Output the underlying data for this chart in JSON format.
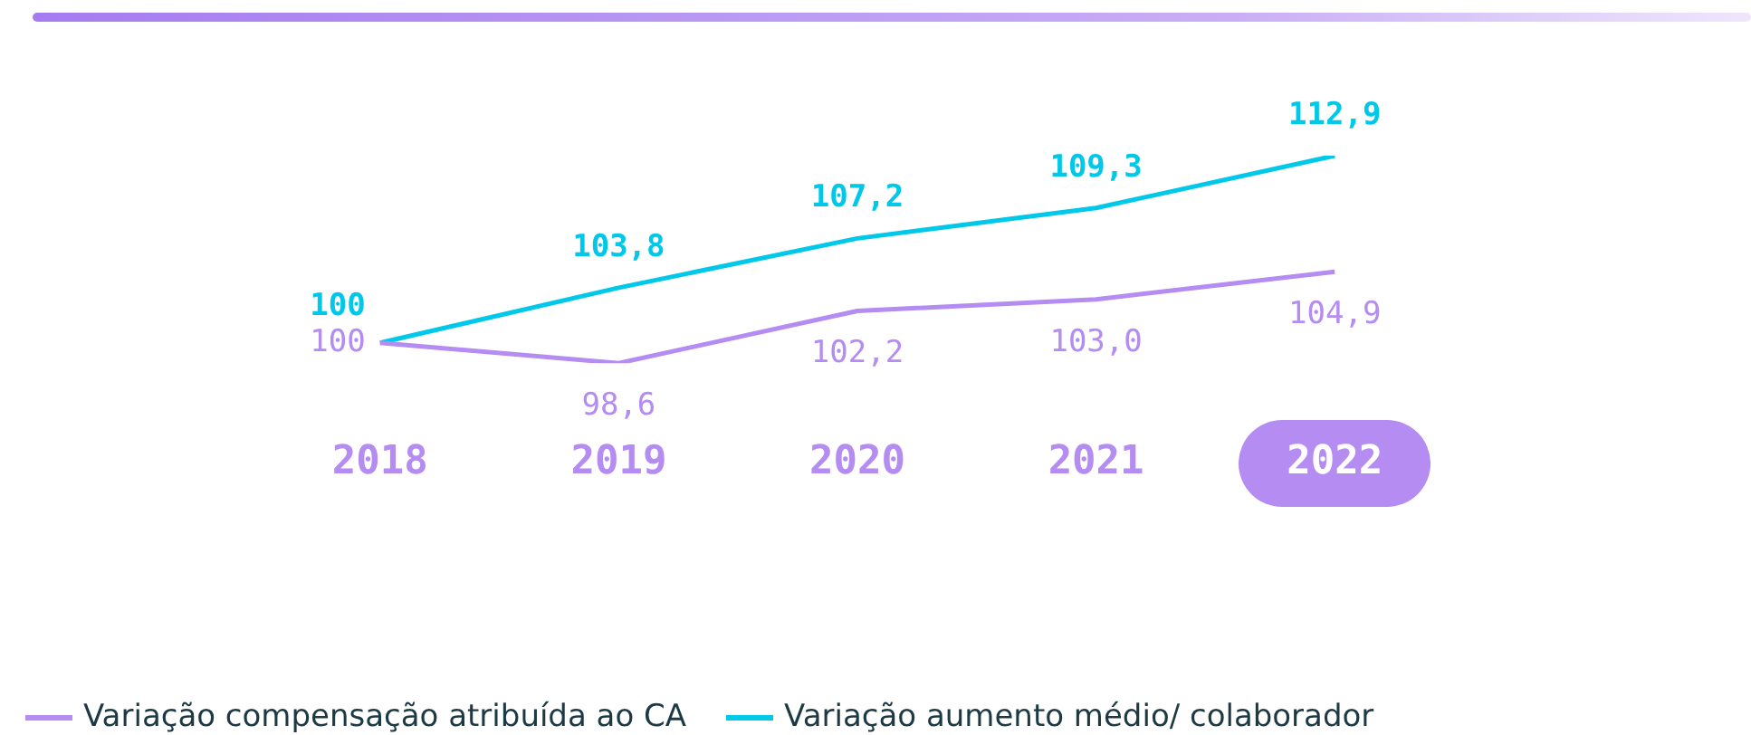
{
  "chart_data": {
    "type": "line",
    "categories": [
      "2018",
      "2019",
      "2020",
      "2021",
      "2022"
    ],
    "series": [
      {
        "name": "Variação compensação atribuída ao CA",
        "color": "#b48cf2",
        "values": [
          100,
          98.6,
          102.2,
          103.0,
          104.9
        ],
        "value_labels": [
          "100",
          "98,6",
          "102,2",
          "103,0",
          "104,9"
        ]
      },
      {
        "name": "Variação aumento médio/ colaborador",
        "color": "#00c8e8",
        "values": [
          100,
          103.8,
          107.2,
          109.3,
          112.9
        ],
        "value_labels": [
          "100",
          "103,8",
          "107,2",
          "109,3",
          "112,9"
        ]
      }
    ],
    "tick_labels": "x",
    "grid": false,
    "legend": "bottom left",
    "marker": "none",
    "line_style": "solid"
  }
}
